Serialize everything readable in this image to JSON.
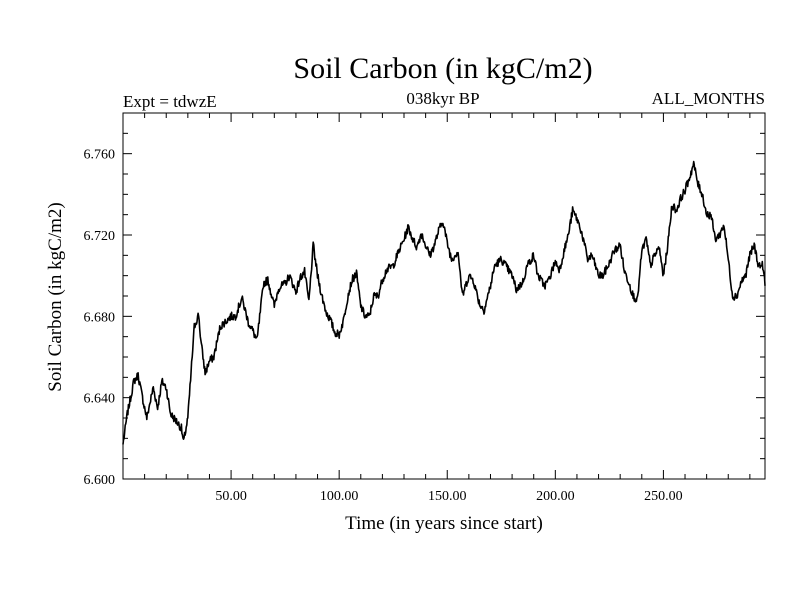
{
  "chart_data": {
    "type": "line",
    "title": "Soil Carbon (in kgC/m2)",
    "subtitle_left": "Expt = tdwzE",
    "subtitle_center": "038kyr BP",
    "subtitle_right": "ALL_MONTHS",
    "xlabel": "Time (in years since start)",
    "ylabel": "Soil Carbon (in kgC/m2)",
    "xlim": [
      0,
      297
    ],
    "ylim": [
      6.6,
      6.78
    ],
    "x_ticks": [
      "50.00",
      "100.00",
      "150.00",
      "200.00",
      "250.00"
    ],
    "x_tick_values": [
      50,
      100,
      150,
      200,
      250
    ],
    "y_ticks": [
      "6.600",
      "6.640",
      "6.680",
      "6.720",
      "6.760"
    ],
    "y_tick_values": [
      6.6,
      6.64,
      6.68,
      6.72,
      6.76
    ],
    "grid": false,
    "series": [
      {
        "name": "Soil Carbon",
        "color": "#000000",
        "x": [
          0,
          2,
          5,
          7,
          9,
          11,
          14,
          16,
          18,
          20,
          22,
          25,
          27,
          28,
          30,
          32,
          33,
          35,
          36,
          38,
          40,
          42,
          45,
          48,
          50,
          52,
          55,
          58,
          60,
          62,
          65,
          67,
          70,
          72,
          75,
          77,
          80,
          82,
          84,
          86,
          88,
          90,
          92,
          94,
          96,
          98,
          100,
          102,
          104,
          106,
          108,
          110,
          112,
          114,
          116,
          118,
          120,
          122,
          125,
          128,
          130,
          132,
          134,
          136,
          138,
          140,
          142,
          144,
          146,
          148,
          150,
          152,
          155,
          157,
          160,
          162,
          165,
          167,
          170,
          172,
          175,
          177,
          180,
          182,
          185,
          187,
          190,
          192,
          195,
          197,
          200,
          202,
          204,
          206,
          208,
          210,
          212,
          215,
          217,
          220,
          222,
          225,
          227,
          230,
          232,
          234,
          236,
          238,
          240,
          242,
          244,
          246,
          248,
          250,
          252,
          254,
          256,
          258,
          260,
          262,
          264,
          266,
          268,
          270,
          272,
          274,
          276,
          278,
          280,
          282,
          284,
          286,
          288,
          290,
          292,
          294,
          296,
          297
        ],
        "values": [
          6.617,
          6.632,
          6.648,
          6.651,
          6.64,
          6.63,
          6.645,
          6.635,
          6.648,
          6.645,
          6.632,
          6.628,
          6.625,
          6.618,
          6.63,
          6.66,
          6.675,
          6.681,
          6.668,
          6.652,
          6.658,
          6.66,
          6.675,
          6.678,
          6.68,
          6.68,
          6.689,
          6.677,
          6.673,
          6.668,
          6.696,
          6.698,
          6.685,
          6.694,
          6.696,
          6.7,
          6.692,
          6.699,
          6.702,
          6.687,
          6.715,
          6.7,
          6.69,
          6.682,
          6.678,
          6.672,
          6.671,
          6.678,
          6.69,
          6.698,
          6.701,
          6.685,
          6.68,
          6.68,
          6.69,
          6.69,
          6.698,
          6.703,
          6.705,
          6.713,
          6.718,
          6.724,
          6.718,
          6.714,
          6.721,
          6.715,
          6.71,
          6.715,
          6.722,
          6.727,
          6.716,
          6.708,
          6.712,
          6.69,
          6.7,
          6.698,
          6.686,
          6.683,
          6.695,
          6.705,
          6.708,
          6.705,
          6.7,
          6.693,
          6.697,
          6.705,
          6.71,
          6.7,
          6.695,
          6.698,
          6.707,
          6.703,
          6.712,
          6.72,
          6.732,
          6.728,
          6.722,
          6.708,
          6.71,
          6.7,
          6.7,
          6.706,
          6.712,
          6.715,
          6.702,
          6.697,
          6.69,
          6.688,
          6.712,
          6.718,
          6.705,
          6.71,
          6.714,
          6.7,
          6.715,
          6.735,
          6.732,
          6.738,
          6.742,
          6.748,
          6.755,
          6.745,
          6.74,
          6.73,
          6.73,
          6.718,
          6.72,
          6.725,
          6.708,
          6.69,
          6.69,
          6.697,
          6.7,
          6.71,
          6.715,
          6.705,
          6.705,
          6.695
        ]
      }
    ]
  }
}
